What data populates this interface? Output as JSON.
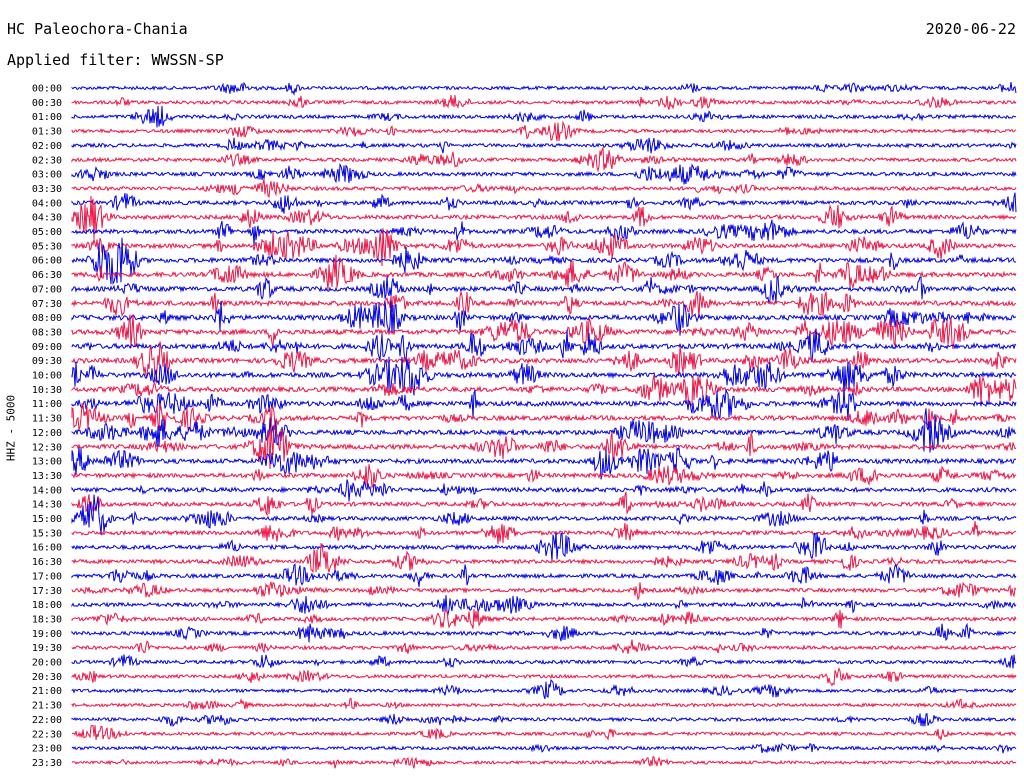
{
  "header": {
    "station": "HC Paleochora-Chania",
    "filter": "Applied filter: WWSSN-SP",
    "date": "2020-06-22"
  },
  "chart_data": {
    "type": "line",
    "title": "HC Paleochora-Chania",
    "subtitle": "Applied filter: WWSSN-SP",
    "date": "2020-06-22",
    "ylabel": "HHZ - 5000",
    "row_labels": [
      "00:00",
      "00:30",
      "01:00",
      "01:30",
      "02:00",
      "02:30",
      "03:00",
      "03:30",
      "04:00",
      "04:30",
      "05:00",
      "05:30",
      "06:00",
      "06:30",
      "07:00",
      "07:30",
      "08:00",
      "08:30",
      "09:00",
      "09:30",
      "10:00",
      "10:30",
      "11:00",
      "11:30",
      "12:00",
      "12:30",
      "13:00",
      "13:30",
      "14:00",
      "14:30",
      "15:00",
      "15:30",
      "16:00",
      "16:30",
      "17:00",
      "17:30",
      "18:00",
      "18:30",
      "19:00",
      "19:30",
      "20:00",
      "20:30",
      "21:00",
      "21:30",
      "22:00",
      "22:30",
      "23:00",
      "23:30"
    ],
    "series_colors": [
      "#0000e6",
      "#ef1446"
    ],
    "trace_activity": [
      1.0,
      1.2,
      1.2,
      1.2,
      1.3,
      1.3,
      1.5,
      1.6,
      1.8,
      1.9,
      2.2,
      2.4,
      2.6,
      2.6,
      2.7,
      2.8,
      3.0,
      3.0,
      3.0,
      2.9,
      3.0,
      2.9,
      2.8,
      2.7,
      2.7,
      2.6,
      2.5,
      2.3,
      2.2,
      2.0,
      1.9,
      1.8,
      1.8,
      1.7,
      1.7,
      1.7,
      1.7,
      1.6,
      1.5,
      1.3,
      1.1,
      1.0,
      1.0,
      0.9,
      0.9,
      0.9,
      0.8,
      0.8
    ]
  }
}
